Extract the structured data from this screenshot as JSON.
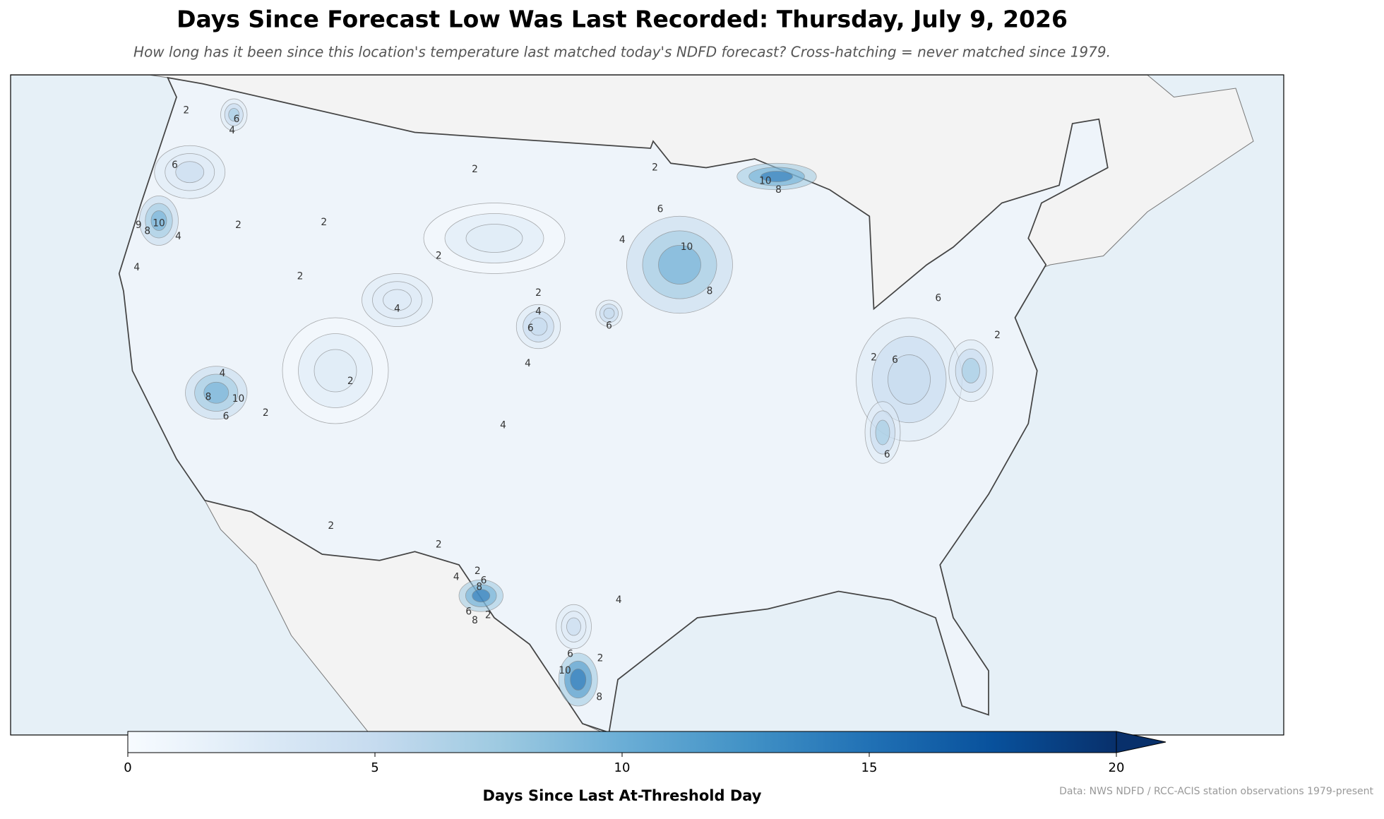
{
  "chart_data": {
    "type": "map",
    "title": "Days Since Forecast Low Was Last Recorded: Thursday, July 9, 2026",
    "subtitle": "How long has it been since this location's temperature last matched today's NDFD forecast? Cross-hatching = never matched since 1979.",
    "colorbar": {
      "label": "Days Since Last At-Threshold Day",
      "lim": [
        0,
        20
      ],
      "ticks": [
        0,
        5,
        10,
        15,
        20
      ],
      "colormap": [
        "#f7fbff",
        "#deebf7",
        "#c6dbef",
        "#9ecae1",
        "#6baed6",
        "#4292c6",
        "#2171b5",
        "#08519c",
        "#08306b"
      ],
      "extend": "max"
    },
    "source": "Data: NWS NDFD / RCC-ACIS station observations 1979-present",
    "contour_labels": [
      6,
      4,
      2,
      6,
      10,
      8,
      9,
      4,
      2,
      4,
      2,
      2,
      2,
      2,
      4,
      2,
      4,
      6,
      4,
      6,
      4,
      2,
      6,
      10,
      8,
      10,
      8,
      4,
      8,
      10,
      6,
      2,
      2,
      4,
      2,
      6,
      6,
      2,
      6,
      2,
      2,
      2,
      4,
      8,
      6,
      6,
      4,
      8,
      2,
      6,
      2,
      10,
      8
    ]
  }
}
